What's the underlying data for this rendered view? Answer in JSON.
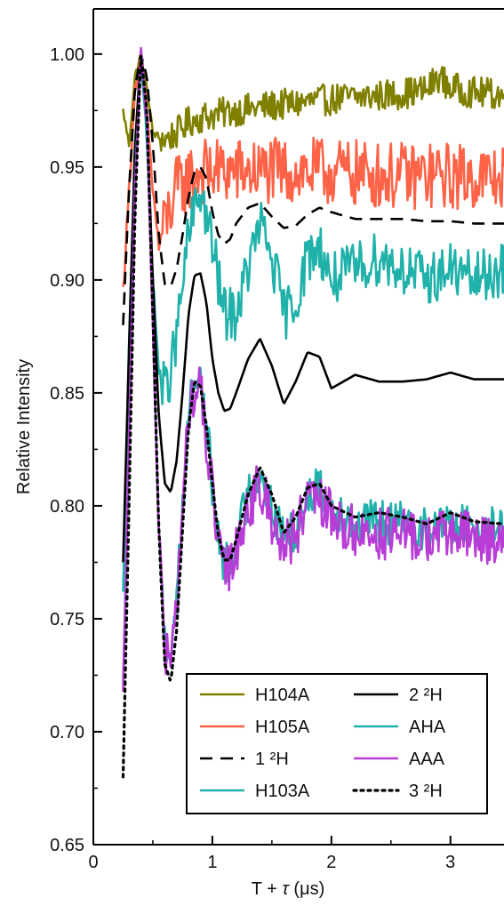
{
  "chart_data": {
    "type": "line",
    "xlabel_parts": {
      "main": "T + ",
      "sym": "τ",
      "unit": " (μs)"
    },
    "ylabel": "Relative Intensity",
    "xlim": [
      0,
      3.45
    ],
    "ylim": [
      0.65,
      1.02
    ],
    "x_ticks": [
      0,
      1,
      2,
      3
    ],
    "x_tick_labels": [
      "0",
      "1",
      "2",
      "3"
    ],
    "y_ticks": [
      0.65,
      0.7,
      0.75,
      0.8,
      0.85,
      0.9,
      0.95,
      1.0
    ],
    "y_tick_labels": [
      "0.65",
      "0.70",
      "0.75",
      "0.80",
      "0.85",
      "0.90",
      "0.95",
      "1.00"
    ],
    "grid": false,
    "legend_position": "bottom-right",
    "series": [
      {
        "name": "H104A",
        "color": "#808000",
        "style": "solid",
        "noise": 0.007,
        "x": [
          0.25,
          0.3,
          0.35,
          0.4,
          0.45,
          0.5,
          0.6,
          0.7,
          0.8,
          0.9,
          1.0,
          1.2,
          1.5,
          2.0,
          2.5,
          2.8,
          2.9,
          3.0,
          3.2,
          3.45
        ],
        "y": [
          0.975,
          0.96,
          0.99,
          1.0,
          0.985,
          0.965,
          0.962,
          0.965,
          0.97,
          0.972,
          0.973,
          0.975,
          0.977,
          0.98,
          0.982,
          0.984,
          0.99,
          0.985,
          0.983,
          0.982
        ]
      },
      {
        "name": "H105A",
        "color": "#FF6347",
        "style": "solid",
        "noise": 0.015,
        "x": [
          0.25,
          0.3,
          0.35,
          0.4,
          0.45,
          0.5,
          0.55,
          0.6,
          0.7,
          0.8,
          0.9,
          1.0,
          1.2,
          1.5,
          2.0,
          2.5,
          3.0,
          3.45
        ],
        "y": [
          0.895,
          0.94,
          0.985,
          0.995,
          0.975,
          0.94,
          0.915,
          0.925,
          0.94,
          0.945,
          0.948,
          0.948,
          0.948,
          0.948,
          0.948,
          0.946,
          0.946,
          0.945
        ]
      },
      {
        "name": "1 ²H",
        "color": "#000000",
        "style": "dashed",
        "noise": 0,
        "x": [
          0.25,
          0.3,
          0.35,
          0.4,
          0.45,
          0.5,
          0.55,
          0.6,
          0.65,
          0.7,
          0.75,
          0.8,
          0.85,
          0.9,
          0.95,
          1.0,
          1.05,
          1.1,
          1.15,
          1.2,
          1.3,
          1.4,
          1.5,
          1.6,
          1.7,
          1.8,
          1.9,
          2.0,
          2.2,
          2.4,
          2.6,
          2.8,
          3.0,
          3.2,
          3.45
        ],
        "y": [
          0.88,
          0.94,
          0.985,
          1.0,
          0.99,
          0.96,
          0.92,
          0.898,
          0.897,
          0.905,
          0.92,
          0.937,
          0.948,
          0.95,
          0.945,
          0.93,
          0.92,
          0.916,
          0.918,
          0.925,
          0.932,
          0.934,
          0.928,
          0.923,
          0.924,
          0.929,
          0.932,
          0.93,
          0.927,
          0.927,
          0.927,
          0.926,
          0.926,
          0.925,
          0.925
        ]
      },
      {
        "name": "H103A",
        "color": "#20B2AA",
        "style": "solid",
        "noise": 0.012,
        "x": [
          0.25,
          0.3,
          0.35,
          0.4,
          0.45,
          0.5,
          0.55,
          0.6,
          0.65,
          0.7,
          0.8,
          0.9,
          1.0,
          1.1,
          1.2,
          1.3,
          1.4,
          1.5,
          1.6,
          1.7,
          1.8,
          1.9,
          2.0,
          2.2,
          2.4,
          2.6,
          2.8,
          3.0,
          3.2,
          3.45
        ],
        "y": [
          0.76,
          0.87,
          0.96,
          1.0,
          0.96,
          0.9,
          0.86,
          0.85,
          0.86,
          0.875,
          0.92,
          0.94,
          0.915,
          0.885,
          0.885,
          0.905,
          0.925,
          0.91,
          0.885,
          0.89,
          0.91,
          0.915,
          0.9,
          0.905,
          0.91,
          0.905,
          0.9,
          0.905,
          0.9,
          0.905
        ]
      },
      {
        "name": "2 ²H",
        "color": "#000000",
        "style": "solid",
        "noise": 0,
        "x": [
          0.25,
          0.3,
          0.35,
          0.4,
          0.45,
          0.5,
          0.55,
          0.6,
          0.65,
          0.7,
          0.75,
          0.8,
          0.85,
          0.9,
          0.95,
          1.0,
          1.05,
          1.1,
          1.15,
          1.2,
          1.3,
          1.4,
          1.5,
          1.6,
          1.7,
          1.8,
          1.9,
          2.0,
          2.2,
          2.4,
          2.6,
          2.8,
          3.0,
          3.2,
          3.45
        ],
        "y": [
          0.775,
          0.87,
          0.96,
          1.0,
          0.97,
          0.9,
          0.84,
          0.81,
          0.806,
          0.82,
          0.85,
          0.885,
          0.902,
          0.903,
          0.89,
          0.865,
          0.85,
          0.842,
          0.843,
          0.85,
          0.865,
          0.874,
          0.862,
          0.845,
          0.855,
          0.868,
          0.866,
          0.852,
          0.858,
          0.855,
          0.855,
          0.856,
          0.859,
          0.856,
          0.856
        ]
      },
      {
        "name": "AHA",
        "color": "#20B2AA",
        "style": "solid",
        "noise": 0.01,
        "x": [
          0.25,
          0.3,
          0.35,
          0.4,
          0.45,
          0.5,
          0.55,
          0.6,
          0.65,
          0.7,
          0.75,
          0.8,
          0.85,
          0.9,
          0.95,
          1.0,
          1.05,
          1.1,
          1.15,
          1.2,
          1.3,
          1.4,
          1.5,
          1.6,
          1.7,
          1.8,
          1.9,
          2.0,
          2.2,
          2.4,
          2.6,
          2.8,
          3.0,
          3.2,
          3.45
        ],
        "y": [
          0.72,
          0.83,
          0.94,
          1.0,
          0.97,
          0.88,
          0.79,
          0.74,
          0.735,
          0.76,
          0.8,
          0.84,
          0.858,
          0.855,
          0.835,
          0.81,
          0.785,
          0.775,
          0.775,
          0.785,
          0.805,
          0.815,
          0.8,
          0.785,
          0.79,
          0.805,
          0.808,
          0.8,
          0.792,
          0.793,
          0.792,
          0.79,
          0.792,
          0.79,
          0.79
        ]
      },
      {
        "name": "AAA",
        "color": "#B83DD6",
        "style": "solid",
        "noise": 0.012,
        "x": [
          0.25,
          0.3,
          0.35,
          0.4,
          0.45,
          0.5,
          0.55,
          0.6,
          0.65,
          0.7,
          0.75,
          0.8,
          0.85,
          0.9,
          0.95,
          1.0,
          1.05,
          1.1,
          1.15,
          1.2,
          1.3,
          1.4,
          1.5,
          1.6,
          1.7,
          1.8,
          1.9,
          2.0,
          2.2,
          2.4,
          2.6,
          2.8,
          3.0,
          3.2,
          3.45
        ],
        "y": [
          0.715,
          0.83,
          0.94,
          1.0,
          0.97,
          0.88,
          0.79,
          0.735,
          0.73,
          0.755,
          0.8,
          0.84,
          0.852,
          0.85,
          0.83,
          0.805,
          0.78,
          0.772,
          0.772,
          0.782,
          0.8,
          0.808,
          0.795,
          0.782,
          0.788,
          0.8,
          0.802,
          0.795,
          0.788,
          0.788,
          0.787,
          0.786,
          0.788,
          0.786,
          0.785
        ]
      },
      {
        "name": "3 ²H",
        "color": "#000000",
        "style": "dotted",
        "noise": 0,
        "x": [
          0.25,
          0.3,
          0.35,
          0.4,
          0.45,
          0.5,
          0.55,
          0.6,
          0.65,
          0.7,
          0.75,
          0.8,
          0.85,
          0.9,
          0.95,
          1.0,
          1.05,
          1.1,
          1.15,
          1.2,
          1.3,
          1.4,
          1.5,
          1.6,
          1.7,
          1.8,
          1.9,
          2.0,
          2.2,
          2.4,
          2.6,
          2.8,
          3.0,
          3.2,
          3.45
        ],
        "y": [
          0.68,
          0.8,
          0.93,
          1.0,
          0.975,
          0.885,
          0.79,
          0.73,
          0.722,
          0.745,
          0.79,
          0.835,
          0.855,
          0.853,
          0.835,
          0.81,
          0.787,
          0.776,
          0.776,
          0.785,
          0.805,
          0.817,
          0.805,
          0.788,
          0.795,
          0.808,
          0.81,
          0.8,
          0.795,
          0.797,
          0.795,
          0.792,
          0.797,
          0.793,
          0.792
        ]
      }
    ],
    "legend_order": [
      [
        "H104A",
        "2 ²H"
      ],
      [
        "H105A",
        "AHA"
      ],
      [
        "1 ²H",
        "AAA"
      ],
      [
        "H103A",
        "3 ²H"
      ]
    ]
  }
}
